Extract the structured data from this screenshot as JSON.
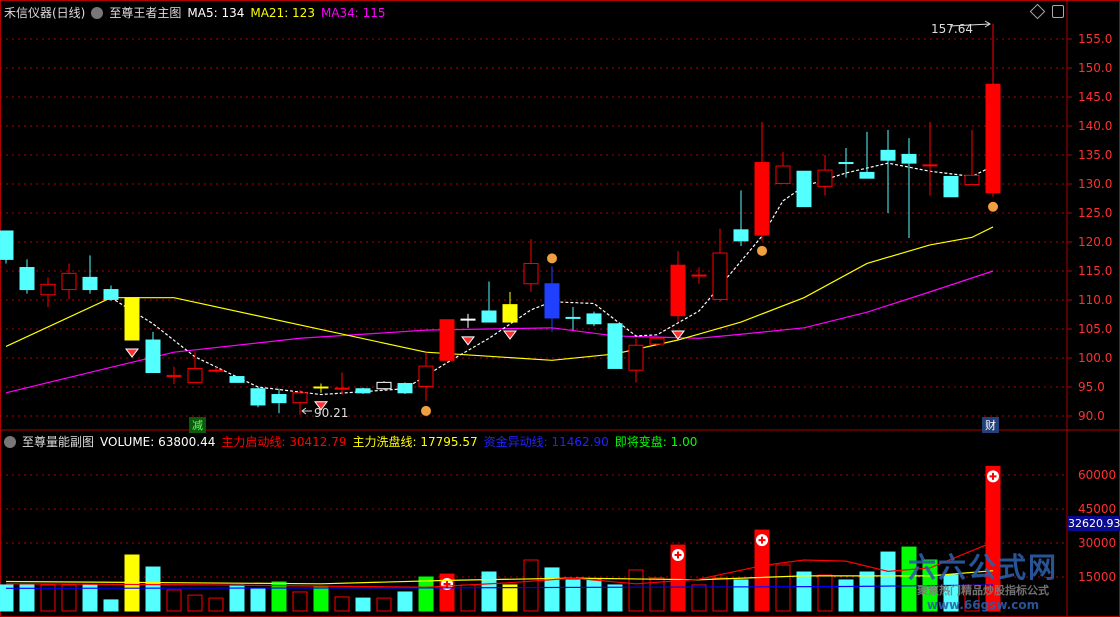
{
  "main_header": {
    "title": "禾信仪器(日线)",
    "indicator": "至尊王者主图",
    "ma5": "MA5: 134",
    "ma21": "MA21: 123",
    "ma34": "MA34: 115"
  },
  "sub_header": {
    "indicator": "至尊量能副图",
    "volume": "VOLUME: 63800.44",
    "line1": "主力启动线: 30412.79",
    "line2": "主力洗盘线: 17795.57",
    "line3": "资金异动线: 11462.90",
    "line4": "即将变盘: 1.00"
  },
  "colors": {
    "up": "#ff0000",
    "down": "#54ffff",
    "ma5": "#ffffff",
    "ma21": "#ffff00",
    "ma34": "#ff00ff",
    "grid": "#b00000",
    "line1": "#ff0000",
    "line2": "#ffff00",
    "line3": "#0000ff",
    "line4": "#00ff00"
  },
  "annotations": {
    "high_label": "157.64",
    "low_label": "90.21",
    "tag_left": "减",
    "tag_right": "财",
    "vol_readout": "32620.93"
  },
  "icons": [
    "collapse-icon",
    "diamond-icon",
    "window-toggle-icon",
    "gem-marker-icon",
    "hand-pointer-icon",
    "plus-circle-icon"
  ],
  "watermark_logo": {
    "name": "六六公式网",
    "slogan": "聚焦热门精品炒股指标公式",
    "url": "www.66gsw.com"
  },
  "chart_data": [
    {
      "type": "candlestick",
      "ylim": [
        88,
        158
      ],
      "y_ticks": [
        "155.0",
        "150.0",
        "145.0",
        "140.0",
        "135.0",
        "130.0",
        "125.0",
        "120.0",
        "115.0",
        "110.0",
        "105.0",
        "100.0",
        "95.0",
        "90.0"
      ],
      "candles": [
        {
          "o": 121.9,
          "c": 117.0,
          "h": 121.9,
          "l": 116.3,
          "k": "down"
        },
        {
          "o": 115.6,
          "c": 111.8,
          "h": 117.0,
          "l": 111.1,
          "k": "down"
        },
        {
          "o": 110.9,
          "c": 112.7,
          "h": 113.9,
          "l": 108.8,
          "k": "up"
        },
        {
          "o": 111.8,
          "c": 114.6,
          "h": 116.3,
          "l": 110.1,
          "k": "up"
        },
        {
          "o": 113.9,
          "c": 111.8,
          "h": 117.7,
          "l": 111.1,
          "k": "down"
        },
        {
          "o": 111.8,
          "c": 110.1,
          "h": 112.5,
          "l": 109.8,
          "k": "down"
        },
        {
          "o": 110.4,
          "c": 103.1,
          "h": 110.4,
          "l": 103.1,
          "k": "yellow"
        },
        {
          "o": 103.1,
          "c": 97.5,
          "h": 104.5,
          "l": 97.5,
          "k": "down"
        },
        {
          "o": 96.8,
          "c": 97.0,
          "h": 98.5,
          "l": 95.5,
          "k": "up"
        },
        {
          "o": 95.8,
          "c": 98.2,
          "h": 101.0,
          "l": 95.8,
          "k": "up"
        },
        {
          "o": 97.8,
          "c": 97.9,
          "h": 98.5,
          "l": 97.5,
          "k": "up"
        },
        {
          "o": 96.8,
          "c": 95.8,
          "h": 96.8,
          "l": 95.8,
          "k": "down"
        },
        {
          "o": 94.7,
          "c": 91.9,
          "h": 95.0,
          "l": 91.5,
          "k": "down"
        },
        {
          "o": 93.7,
          "c": 92.3,
          "h": 94.7,
          "l": 90.5,
          "k": "down"
        },
        {
          "o": 92.3,
          "c": 94.0,
          "h": 94.5,
          "l": 90.21,
          "k": "up"
        },
        {
          "o": 94.9,
          "c": 95.0,
          "h": 95.6,
          "l": 94.0,
          "k": "yellow"
        },
        {
          "o": 94.7,
          "c": 94.8,
          "h": 97.5,
          "l": 93.7,
          "k": "up"
        },
        {
          "o": 94.7,
          "c": 94.0,
          "h": 94.9,
          "l": 93.8,
          "k": "down"
        },
        {
          "o": 95.8,
          "c": 94.7,
          "h": 96.0,
          "l": 94.5,
          "k": "white"
        },
        {
          "o": 95.6,
          "c": 94.0,
          "h": 95.8,
          "l": 93.8,
          "k": "down"
        },
        {
          "o": 95.1,
          "c": 98.6,
          "h": 101.0,
          "l": 92.6,
          "k": "up"
        },
        {
          "o": 99.6,
          "c": 106.6,
          "h": 106.6,
          "l": 99.6,
          "k": "upfill"
        },
        {
          "o": 106.6,
          "c": 106.7,
          "h": 107.6,
          "l": 105.2,
          "k": "white"
        },
        {
          "o": 108.1,
          "c": 106.2,
          "h": 113.2,
          "l": 106.2,
          "k": "down"
        },
        {
          "o": 106.2,
          "c": 109.2,
          "h": 111.4,
          "l": 106.2,
          "k": "yellow"
        },
        {
          "o": 112.8,
          "c": 116.3,
          "h": 120.5,
          "l": 111.4,
          "k": "up"
        },
        {
          "o": 112.8,
          "c": 106.9,
          "h": 115.8,
          "l": 104.5,
          "k": "blue"
        },
        {
          "o": 106.9,
          "c": 107.0,
          "h": 108.8,
          "l": 104.8,
          "k": "down"
        },
        {
          "o": 107.6,
          "c": 105.9,
          "h": 108.0,
          "l": 105.5,
          "k": "down"
        },
        {
          "o": 105.9,
          "c": 98.2,
          "h": 105.9,
          "l": 98.2,
          "k": "down"
        },
        {
          "o": 97.9,
          "c": 102.2,
          "h": 103.4,
          "l": 95.8,
          "k": "up"
        },
        {
          "o": 102.4,
          "c": 103.4,
          "h": 103.6,
          "l": 102.2,
          "k": "up"
        },
        {
          "o": 107.3,
          "c": 116.0,
          "h": 118.4,
          "l": 106.2,
          "k": "upfill"
        },
        {
          "o": 114.2,
          "c": 114.3,
          "h": 115.6,
          "l": 112.8,
          "k": "up"
        },
        {
          "o": 110.1,
          "c": 118.1,
          "h": 122.3,
          "l": 109.7,
          "k": "up"
        },
        {
          "o": 122.1,
          "c": 120.2,
          "h": 128.9,
          "l": 119.3,
          "k": "down"
        },
        {
          "o": 121.2,
          "c": 133.7,
          "h": 140.7,
          "l": 120.2,
          "k": "upfill"
        },
        {
          "o": 130.1,
          "c": 133.1,
          "h": 135.5,
          "l": 130.1,
          "k": "up"
        },
        {
          "o": 132.2,
          "c": 126.1,
          "h": 132.2,
          "l": 126.1,
          "k": "down"
        },
        {
          "o": 129.6,
          "c": 132.4,
          "h": 135.0,
          "l": 128.0,
          "k": "up"
        },
        {
          "o": 133.6,
          "c": 133.7,
          "h": 136.2,
          "l": 131.1,
          "k": "down"
        },
        {
          "o": 132.0,
          "c": 131.0,
          "h": 139.0,
          "l": 131.0,
          "k": "down"
        },
        {
          "o": 135.8,
          "c": 134.1,
          "h": 139.3,
          "l": 125.0,
          "k": "down"
        },
        {
          "o": 135.1,
          "c": 133.6,
          "h": 137.9,
          "l": 120.7,
          "k": "down"
        },
        {
          "o": 133.2,
          "c": 133.3,
          "h": 140.7,
          "l": 128.0,
          "k": "up"
        },
        {
          "o": 131.3,
          "c": 127.8,
          "h": 131.3,
          "l": 127.8,
          "k": "down"
        },
        {
          "o": 129.9,
          "c": 131.5,
          "h": 139.3,
          "l": 129.9,
          "k": "up"
        },
        {
          "o": 128.5,
          "c": 147.2,
          "h": 157.64,
          "l": 127.8,
          "k": "upfill"
        }
      ],
      "ma5": [
        [
          5,
          110.4
        ],
        [
          7,
          105.9
        ],
        [
          9,
          100.2
        ],
        [
          12,
          95.0
        ],
        [
          15,
          93.7
        ],
        [
          19,
          94.7
        ],
        [
          21,
          99.2
        ],
        [
          23,
          103.4
        ],
        [
          25,
          108.3
        ],
        [
          26,
          109.7
        ],
        [
          28,
          109.4
        ],
        [
          29,
          106.6
        ],
        [
          30,
          103.8
        ],
        [
          31,
          104.0
        ],
        [
          33,
          108.1
        ],
        [
          35,
          116.7
        ],
        [
          36,
          121.0
        ],
        [
          37,
          127.1
        ],
        [
          38,
          129.6
        ],
        [
          40,
          131.9
        ],
        [
          42,
          133.6
        ],
        [
          44,
          132.2
        ],
        [
          46,
          131.3
        ],
        [
          47,
          133.1
        ]
      ],
      "ma21": [
        [
          0,
          102.0
        ],
        [
          5,
          110.4
        ],
        [
          8,
          110.4
        ],
        [
          20,
          101.0
        ],
        [
          26,
          99.6
        ],
        [
          29,
          100.7
        ],
        [
          32,
          103.1
        ],
        [
          35,
          106.2
        ],
        [
          38,
          110.4
        ],
        [
          41,
          116.3
        ],
        [
          44,
          119.5
        ],
        [
          46,
          120.8
        ],
        [
          47,
          122.6
        ]
      ],
      "ma34": [
        [
          0,
          94.0
        ],
        [
          5,
          98.4
        ],
        [
          8,
          101.0
        ],
        [
          14,
          103.4
        ],
        [
          20,
          104.8
        ],
        [
          26,
          105.2
        ],
        [
          29,
          103.8
        ],
        [
          33,
          103.4
        ],
        [
          35,
          104.1
        ],
        [
          38,
          105.2
        ],
        [
          41,
          107.9
        ],
        [
          44,
          111.4
        ],
        [
          47,
          115.0
        ]
      ],
      "gems": [
        6,
        15,
        22,
        24,
        32
      ],
      "pointers": [
        20,
        26,
        36,
        47
      ]
    },
    {
      "type": "bar",
      "ylim": [
        0,
        70000
      ],
      "y_ticks": [
        "60000",
        "45000",
        "30000",
        "15000"
      ],
      "volumes": [
        11500,
        11500,
        11500,
        11500,
        11500,
        4900,
        24700,
        19400,
        9300,
        7000,
        5700,
        11500,
        10100,
        12800,
        8400,
        11000,
        6200,
        5700,
        5700,
        8400,
        15000,
        16300,
        11500,
        17200,
        11500,
        22500,
        19000,
        13700,
        13700,
        11500,
        18100,
        14600,
        29100,
        11500,
        14600,
        13700,
        35700,
        20300,
        17200,
        15900,
        13700,
        17200,
        26000,
        28200,
        22500,
        15900,
        11500,
        63800
      ],
      "bar_colors": [
        "c",
        "c",
        "r",
        "r",
        "c",
        "c",
        "y",
        "c",
        "r",
        "r",
        "r",
        "c",
        "c",
        "g",
        "r",
        "g",
        "r",
        "c",
        "r",
        "c",
        "g",
        "rf",
        "r",
        "c",
        "y",
        "r",
        "c",
        "c",
        "c",
        "c",
        "r",
        "r",
        "rf",
        "r",
        "r",
        "c",
        "rf",
        "r",
        "c",
        "r",
        "c",
        "c",
        "c",
        "g",
        "g",
        "c",
        "r",
        "rf"
      ],
      "plus_markers": [
        21,
        32,
        36,
        47
      ],
      "line1": [
        [
          0,
          12000
        ],
        [
          10,
          11500
        ],
        [
          20,
          10500
        ],
        [
          24,
          12500
        ],
        [
          27,
          14500
        ],
        [
          30,
          12000
        ],
        [
          33,
          14000
        ],
        [
          36,
          20000
        ],
        [
          38,
          22500
        ],
        [
          40,
          22000
        ],
        [
          42,
          17500
        ],
        [
          44,
          19000
        ],
        [
          47,
          30412.79
        ]
      ],
      "line2": [
        [
          0,
          13000
        ],
        [
          8,
          12500
        ],
        [
          15,
          12000
        ],
        [
          21,
          13500
        ],
        [
          27,
          14500
        ],
        [
          33,
          13800
        ],
        [
          38,
          15500
        ],
        [
          44,
          15500
        ],
        [
          47,
          17795.57
        ]
      ],
      "line3": [
        [
          0,
          10000
        ],
        [
          20,
          10200
        ],
        [
          30,
          10500
        ],
        [
          40,
          10800
        ],
        [
          47,
          11462.9
        ]
      ]
    }
  ]
}
